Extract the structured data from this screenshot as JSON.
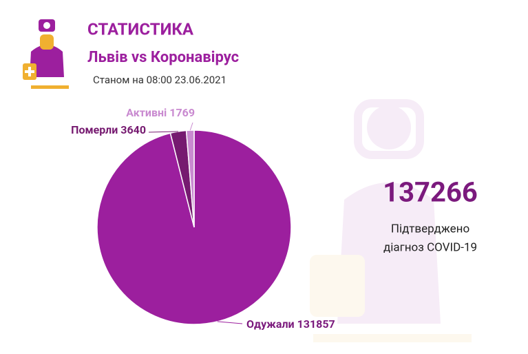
{
  "chart_data": {
    "type": "pie",
    "title": "СТАТИСТИКА",
    "subtitle": "Львів vs Коронавірус",
    "date_note": "Станом на 08:00 23.06.2021",
    "categories": [
      "Одужали",
      "Померли",
      "Активні"
    ],
    "values": [
      131857,
      3640,
      1769
    ],
    "colors": [
      "#9c1f9e",
      "#761a70",
      "#c98ad0"
    ],
    "total": 137266,
    "total_label_lines": [
      "Підтверджено",
      "діагноз COVID-19"
    ]
  }
}
